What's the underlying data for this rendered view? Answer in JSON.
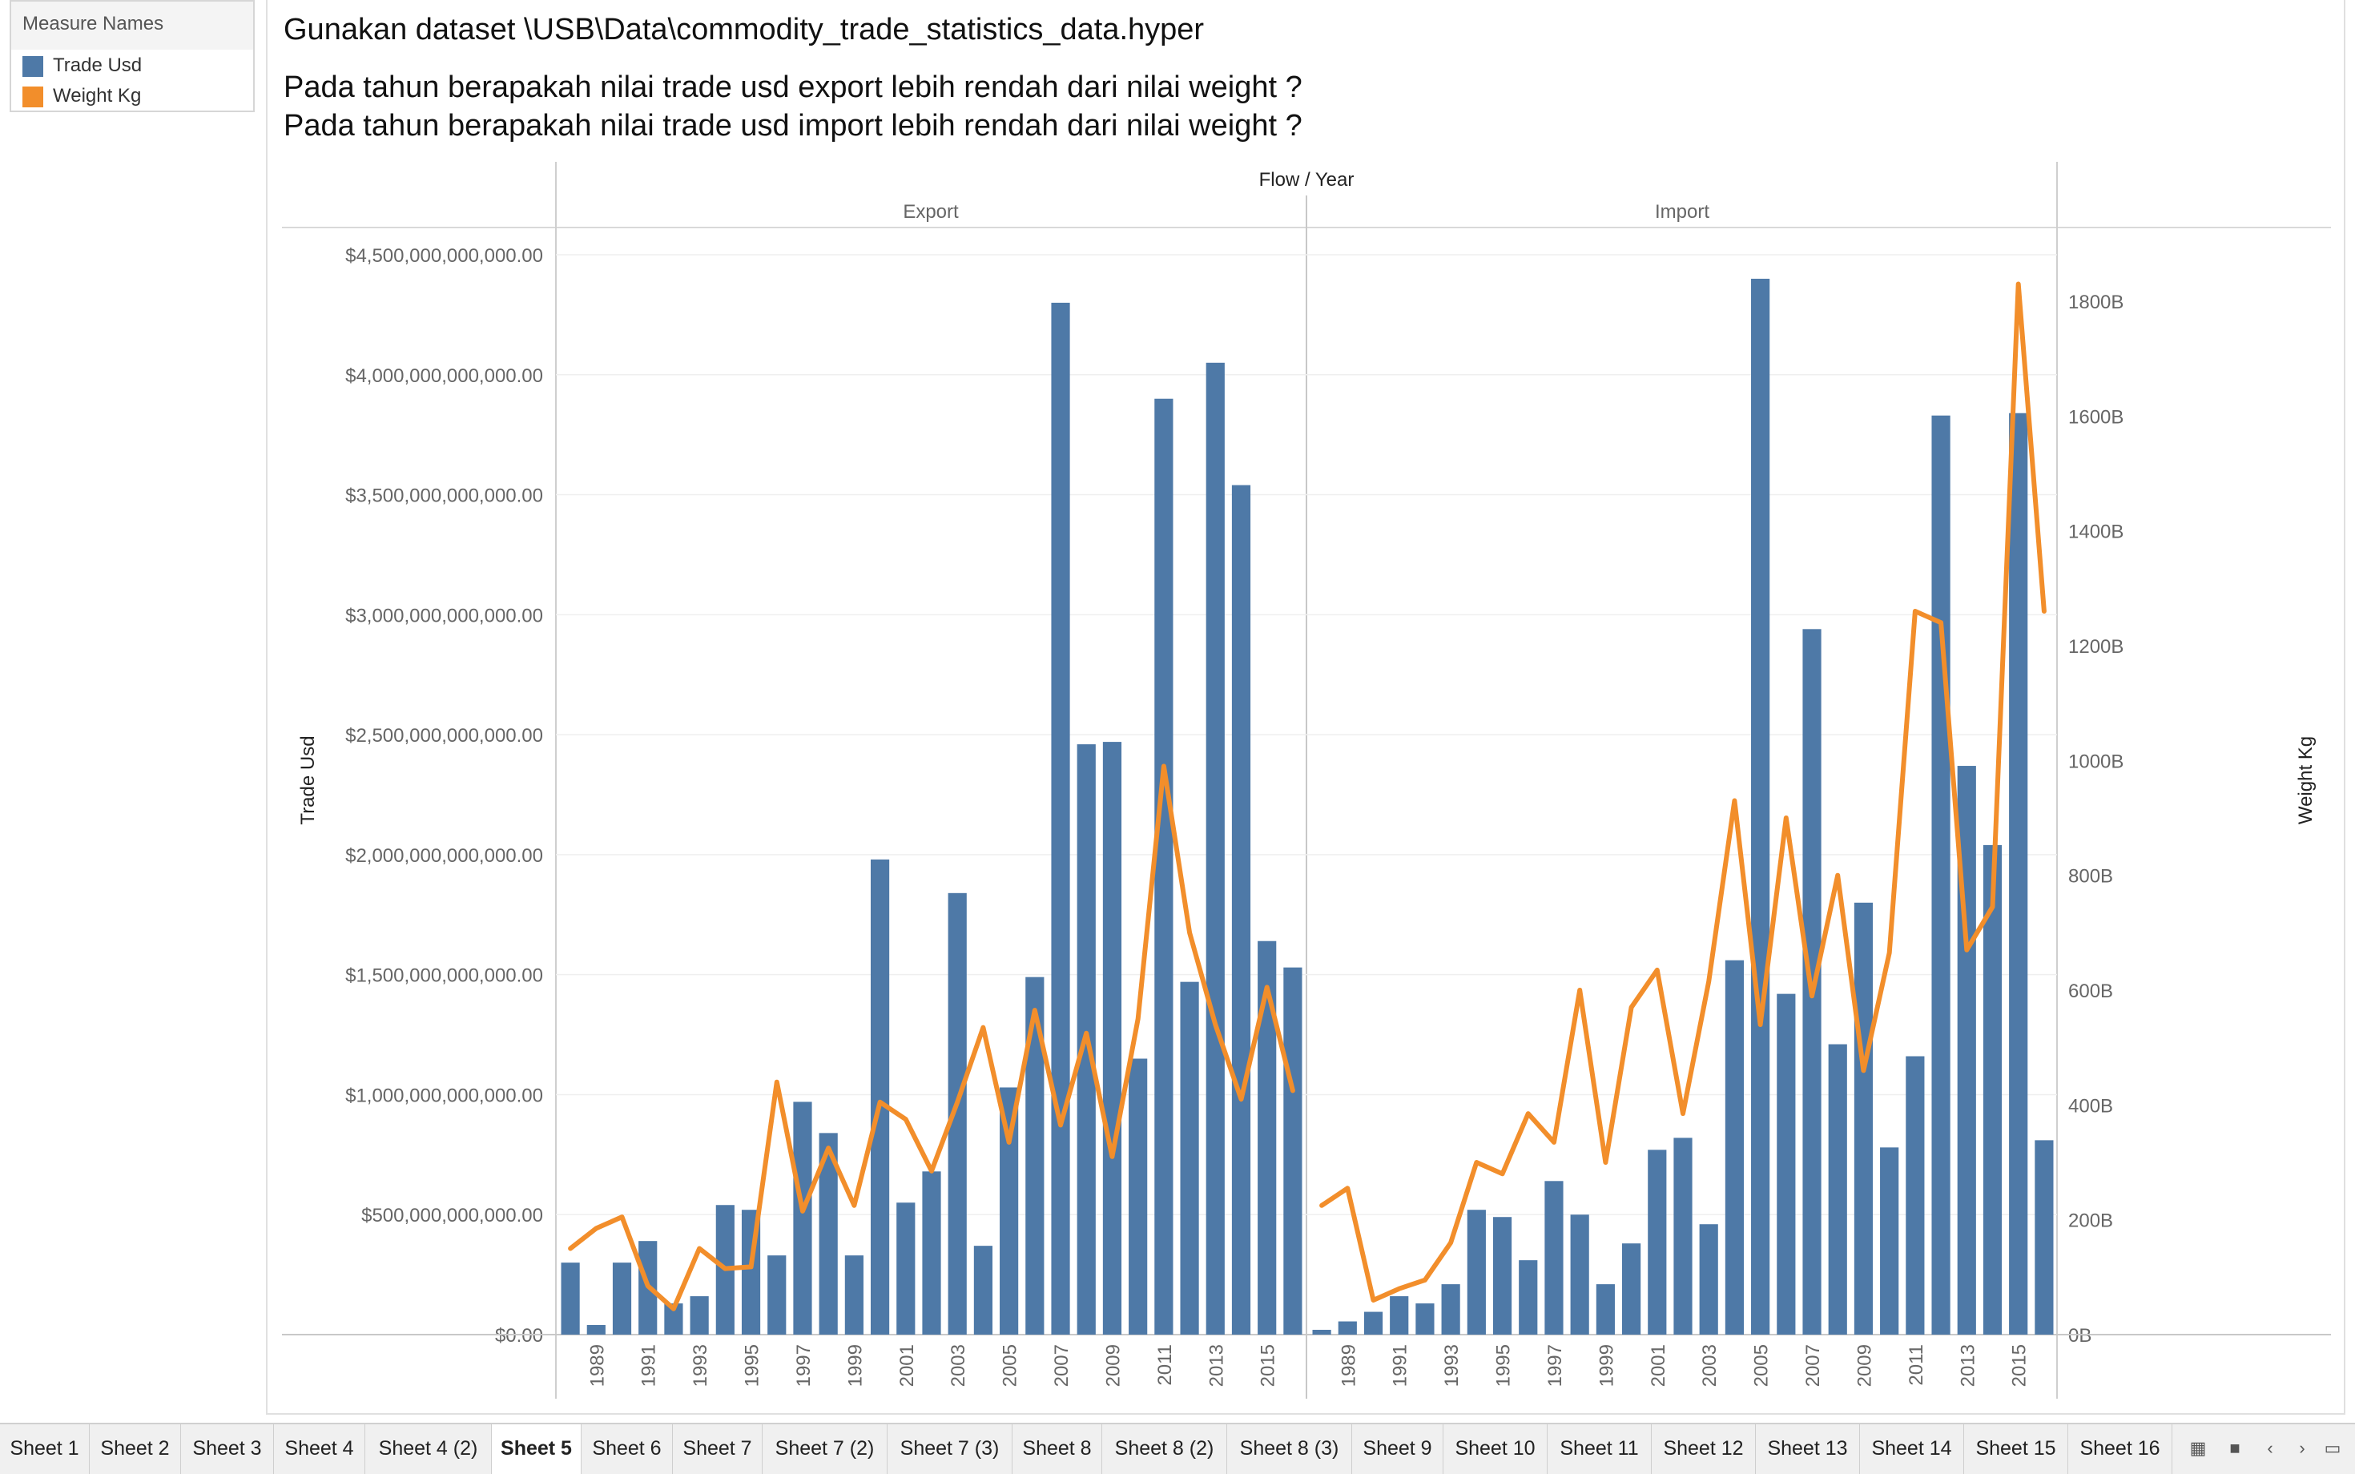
{
  "legend": {
    "title": "Measure Names",
    "items": [
      {
        "label": "Trade Usd",
        "color": "#4e79a7"
      },
      {
        "label": "Weight Kg",
        "color": "#f28e2b"
      }
    ]
  },
  "worksheet": {
    "title": "Gunakan dataset \\USB\\Data\\commodity_trade_statistics_data.hyper",
    "question_export": "Pada tahun berapakah nilai trade usd export lebih rendah dari nilai weight ?",
    "question_import": "Pada tahun berapakah nilai trade usd import lebih rendah dari nilai weight ?"
  },
  "chart_data": {
    "type": "bar",
    "header": "Flow / Year",
    "ylabel": "Trade Usd",
    "y2label": "Weight Kg",
    "ylim": [
      0,
      4500000000000
    ],
    "y2lim": [
      0,
      1875
    ],
    "y2unit": "B",
    "yticks": [
      {
        "value": 0,
        "label": "$0.00"
      },
      {
        "value": 500000000000,
        "label": "$500,000,000,000.00"
      },
      {
        "value": 1000000000000,
        "label": "$1,000,000,000,000.00"
      },
      {
        "value": 1500000000000,
        "label": "$1,500,000,000,000.00"
      },
      {
        "value": 2000000000000,
        "label": "$2,000,000,000,000.00"
      },
      {
        "value": 2500000000000,
        "label": "$2,500,000,000,000.00"
      },
      {
        "value": 3000000000000,
        "label": "$3,000,000,000,000.00"
      },
      {
        "value": 3500000000000,
        "label": "$3,500,000,000,000.00"
      },
      {
        "value": 4000000000000,
        "label": "$4,000,000,000,000.00"
      },
      {
        "value": 4500000000000,
        "label": "$4,500,000,000,000.00"
      }
    ],
    "y2ticks": [
      {
        "value": 0,
        "label": "0B"
      },
      {
        "value": 200,
        "label": "200B"
      },
      {
        "value": 400,
        "label": "400B"
      },
      {
        "value": 600,
        "label": "600B"
      },
      {
        "value": 800,
        "label": "800B"
      },
      {
        "value": 1000,
        "label": "1000B"
      },
      {
        "value": 1200,
        "label": "1200B"
      },
      {
        "value": 1400,
        "label": "1400B"
      },
      {
        "value": 1600,
        "label": "1600B"
      },
      {
        "value": 1800,
        "label": "1800B"
      }
    ],
    "years": [
      1988,
      1989,
      1990,
      1991,
      1992,
      1993,
      1994,
      1995,
      1996,
      1997,
      1998,
      1999,
      2000,
      2001,
      2002,
      2003,
      2004,
      2005,
      2006,
      2007,
      2008,
      2009,
      2010,
      2011,
      2012,
      2013,
      2014,
      2015,
      2016
    ],
    "year_labels": [
      "1989",
      "1991",
      "1993",
      "1995",
      "1997",
      "1999",
      "2001",
      "2003",
      "2005",
      "2007",
      "2009",
      "2011",
      "2013",
      "2015"
    ],
    "panels": [
      {
        "name": "Export",
        "series": [
          {
            "name": "Trade Usd",
            "color": "#4e79a7",
            "values": [
              300000000000,
              40000000000,
              300000000000,
              390000000000,
              130000000000,
              160000000000,
              540000000000,
              520000000000,
              330000000000,
              970000000000,
              840000000000,
              330000000000,
              1980000000000,
              550000000000,
              680000000000,
              1840000000000,
              370000000000,
              1030000000000,
              1490000000000,
              4300000000000,
              2460000000000,
              2470000000000,
              1150000000000,
              3900000000000,
              1470000000000,
              4050000000000,
              3540000000000,
              1640000000000,
              1530000000000
            ]
          },
          {
            "name": "Weight Kg",
            "color": "#f28e2b",
            "values": [
              150,
              185,
              205,
              85,
              45,
              150,
              115,
              118,
              440,
              215,
              325,
              225,
              405,
              375,
              285,
              405,
              535,
              335,
              565,
              365,
              525,
              310,
              550,
              990,
              700,
              540,
              410,
              605,
              425
            ]
          }
        ]
      },
      {
        "name": "Import",
        "series": [
          {
            "name": "Trade Usd",
            "color": "#4e79a7",
            "values": [
              20000000000,
              55000000000,
              95000000000,
              160000000000,
              130000000000,
              210000000000,
              520000000000,
              490000000000,
              310000000000,
              640000000000,
              500000000000,
              210000000000,
              380000000000,
              770000000000,
              820000000000,
              460000000000,
              1560000000000,
              4400000000000,
              1420000000000,
              2940000000000,
              1210000000000,
              1800000000000,
              780000000000,
              1160000000000,
              3830000000000,
              2370000000000,
              2040000000000,
              3840000000000,
              810000000000
            ]
          },
          {
            "name": "Weight Kg",
            "color": "#f28e2b",
            "values": [
              225,
              255,
              60,
              80,
              95,
              160,
              300,
              280,
              385,
              335,
              600,
              300,
              570,
              635,
              385,
              615,
              930,
              540,
              900,
              590,
              800,
              460,
              665,
              1260,
              1240,
              670,
              745,
              1830,
              1260
            ]
          }
        ]
      }
    ]
  },
  "tabs": {
    "items": [
      "Sheet 1",
      "Sheet 2",
      "Sheet 3",
      "Sheet 4",
      "Sheet 4 (2)",
      "Sheet 5",
      "Sheet 6",
      "Sheet 7",
      "Sheet 7 (2)",
      "Sheet 7 (3)",
      "Sheet 8",
      "Sheet 8 (2)",
      "Sheet 8 (3)",
      "Sheet 9",
      "Sheet 10",
      "Sheet 11",
      "Sheet 12",
      "Sheet 13",
      "Sheet 14",
      "Sheet 15",
      "Sheet 16"
    ],
    "active": "Sheet 5",
    "icons": [
      "grid-view-icon",
      "filmstrip-icon",
      "prev-sheet-icon",
      "next-sheet-icon",
      "presentation-icon"
    ]
  }
}
